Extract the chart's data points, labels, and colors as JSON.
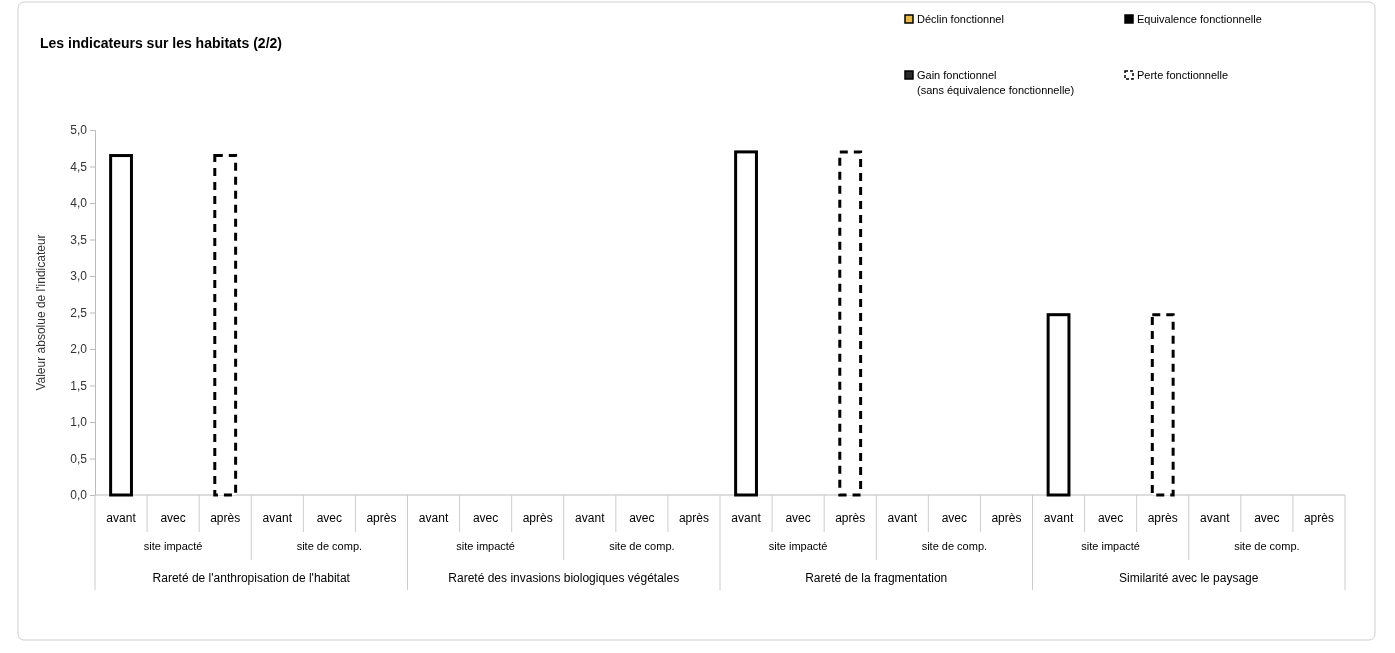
{
  "chart_data": {
    "type": "bar",
    "title": "Les indicateurs sur les habitats (2/2)",
    "ylabel": "Valeur absolue de l'indicateur",
    "categories": [
      "avant",
      "avec",
      "après",
      "avant",
      "avec",
      "après",
      "avant",
      "avec",
      "après",
      "avant",
      "avec",
      "après",
      "avant",
      "avec",
      "après",
      "avant",
      "avec",
      "après",
      "avant",
      "avec",
      "après",
      "avant",
      "avec",
      "après"
    ],
    "annotations": [
      "site impacté",
      "site de comp.",
      "site impacté",
      "site de comp.",
      "site impacté",
      "site de comp.",
      "site impacté",
      "site de comp.",
      "Rareté de l'anthropisation de l'habitat",
      "Rareté des invasions biologiques végétales",
      "Rareté de la fragmentation",
      "Similarité avec le paysage"
    ],
    "series": [
      {
        "color": "#ffffff",
        "values": [
          4.65,
          null,
          null,
          null,
          null,
          null,
          null,
          null,
          null,
          null,
          null,
          null,
          4.7,
          null,
          null,
          null,
          null,
          null,
          2.47,
          null,
          null,
          null,
          null,
          null
        ]
      },
      {
        "name": "Déclin fonctionnel",
        "color": "#e8b84a",
        "values": [
          null,
          null,
          null,
          null,
          null,
          null,
          null,
          null,
          null,
          null,
          null,
          null,
          null,
          null,
          null,
          null,
          null,
          null,
          null,
          null,
          null,
          null,
          null,
          null
        ]
      },
      {
        "name": "Equivalence fonctionnelle",
        "color": "#000000",
        "values": [
          null,
          null,
          null,
          null,
          null,
          null,
          null,
          null,
          null,
          null,
          null,
          null,
          null,
          null,
          null,
          null,
          null,
          null,
          null,
          null,
          null,
          null,
          null,
          null
        ]
      },
      {
        "name": "Gain fonctionnel\n(sans équivalence fonctionnelle)",
        "color": "#2a2a2a",
        "values": [
          null,
          null,
          null,
          null,
          null,
          null,
          null,
          null,
          null,
          null,
          null,
          null,
          null,
          null,
          null,
          null,
          null,
          null,
          null,
          null,
          null,
          null,
          null,
          null
        ]
      },
      {
        "name": "Perte fonctionnelle",
        "color": "#ffffff",
        "line_style": "dashed",
        "values": [
          null,
          null,
          4.65,
          null,
          null,
          null,
          null,
          null,
          null,
          null,
          null,
          null,
          null,
          null,
          4.7,
          null,
          null,
          null,
          null,
          null,
          2.47,
          null,
          null,
          null
        ]
      }
    ],
    "ylim": [
      0,
      5
    ],
    "yticks": [
      {
        "value": 0,
        "label": "0,0"
      },
      {
        "value": 0.5,
        "label": "0,5"
      },
      {
        "value": 1,
        "label": "1,0"
      },
      {
        "value": 1.5,
        "label": "1,5"
      },
      {
        "value": 2,
        "label": "2,0"
      },
      {
        "value": 2.5,
        "label": "2,5"
      },
      {
        "value": 3,
        "label": "3,0"
      },
      {
        "value": 3.5,
        "label": "3,5"
      },
      {
        "value": 4,
        "label": "4,0"
      },
      {
        "value": 4.5,
        "label": "4,5"
      },
      {
        "value": 5,
        "label": "5,0"
      }
    ],
    "legend": "top right",
    "grid": false
  }
}
